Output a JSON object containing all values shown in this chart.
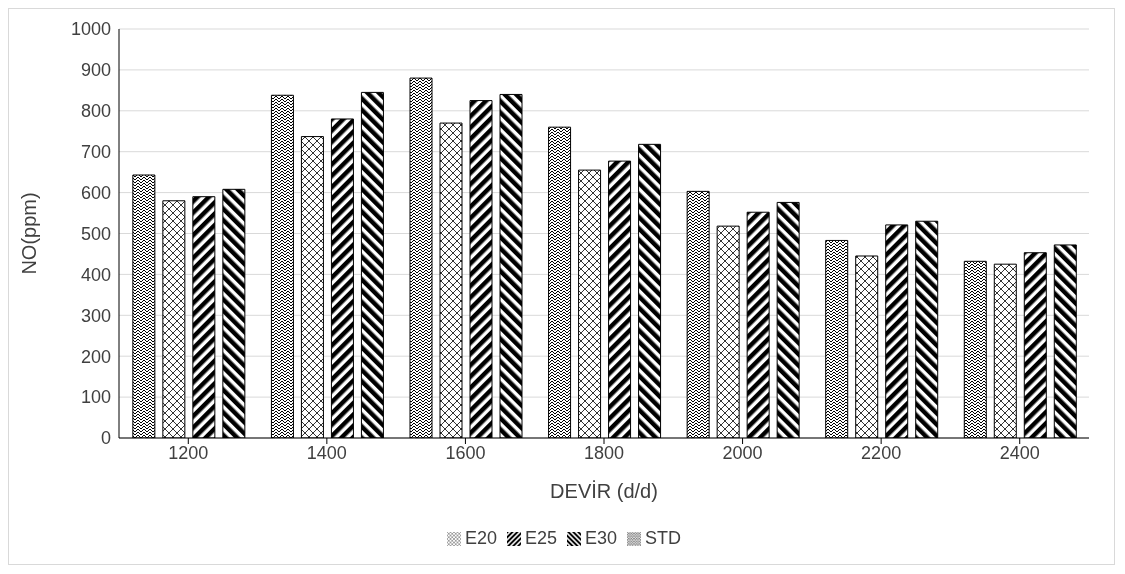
{
  "chart_data": {
    "type": "bar",
    "xlabel": "DEVİR (d/d)",
    "ylabel": "NO(ppm)",
    "categories": [
      "1200",
      "1400",
      "1600",
      "1800",
      "2000",
      "2200",
      "2400"
    ],
    "series": [
      {
        "name": "STD",
        "color": "#000000",
        "values": [
          643,
          838,
          880,
          760,
          603,
          483,
          432
        ]
      },
      {
        "name": "E20",
        "color": "#000000",
        "values": [
          580,
          737,
          770,
          655,
          518,
          445,
          425
        ]
      },
      {
        "name": "E25",
        "color": "#000000",
        "values": [
          590,
          780,
          825,
          677,
          552,
          521,
          453
        ]
      },
      {
        "name": "E30",
        "color": "#000000",
        "values": [
          608,
          845,
          840,
          718,
          576,
          530,
          472
        ]
      }
    ],
    "ylim": [
      0,
      1000
    ],
    "yticks": [
      0,
      100,
      200,
      300,
      400,
      500,
      600,
      700,
      800,
      900,
      1000
    ],
    "grid": "y",
    "legend": "bottom"
  }
}
